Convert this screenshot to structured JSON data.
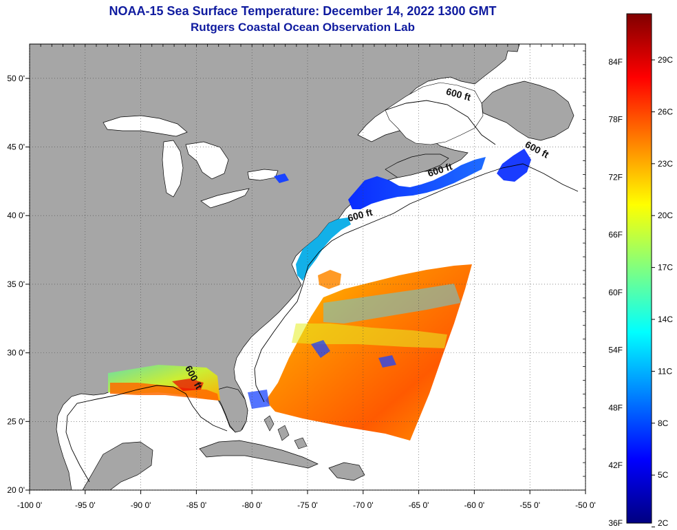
{
  "title": {
    "line1": "NOAA-15 Sea Surface Temperature:  December 14, 2022 1300 GMT",
    "line2": "Rutgers Coastal Ocean Observation Lab"
  },
  "map": {
    "lon_range": [
      -100,
      -50
    ],
    "lat_range": [
      20,
      52.5
    ],
    "lon_ticks": [
      {
        "value": -100,
        "label": "-100 0'"
      },
      {
        "value": -95,
        "label": "-95 0'"
      },
      {
        "value": -90,
        "label": "-90 0'"
      },
      {
        "value": -85,
        "label": "-85 0'"
      },
      {
        "value": -80,
        "label": "-80 0'"
      },
      {
        "value": -75,
        "label": "-75 0'"
      },
      {
        "value": -70,
        "label": "-70 0'"
      },
      {
        "value": -65,
        "label": "-65 0'"
      },
      {
        "value": -60,
        "label": "-60 0'"
      },
      {
        "value": -55,
        "label": "-55 0'"
      },
      {
        "value": -50,
        "label": "-50 0'"
      }
    ],
    "lat_ticks": [
      {
        "value": 20,
        "label": "20 0'"
      },
      {
        "value": 25,
        "label": "25 0'"
      },
      {
        "value": 30,
        "label": "30 0'"
      },
      {
        "value": 35,
        "label": "35 0'"
      },
      {
        "value": 40,
        "label": "40 0'"
      },
      {
        "value": 45,
        "label": "45 0'"
      },
      {
        "value": 50,
        "label": "50 0'"
      }
    ],
    "isobath_labels": [
      {
        "text": "600 ft",
        "lon": -61.5,
        "lat": 48.6,
        "angle": 15
      },
      {
        "text": "600 ft",
        "lon": -54.5,
        "lat": 44.6,
        "angle": 28
      },
      {
        "text": "600 ft",
        "lon": -63.0,
        "lat": 43.1,
        "angle": -18
      },
      {
        "text": "600 ft",
        "lon": -70.2,
        "lat": 39.8,
        "angle": -15
      },
      {
        "text": "600 ft",
        "lon": -85.5,
        "lat": 28.1,
        "angle": 62
      }
    ],
    "colors": {
      "land": "#a6a6a6",
      "ocean_no_data": "#ffffff",
      "grid": "#444444",
      "title": "#0f1b9f"
    }
  },
  "colorbar": {
    "fahrenheit_labels": [
      {
        "value": 36,
        "label": "36F"
      },
      {
        "value": 42,
        "label": "42F"
      },
      {
        "value": 48,
        "label": "48F"
      },
      {
        "value": 54,
        "label": "54F"
      },
      {
        "value": 60,
        "label": "60F"
      },
      {
        "value": 66,
        "label": "66F"
      },
      {
        "value": 72,
        "label": "72F"
      },
      {
        "value": 78,
        "label": "78F"
      },
      {
        "value": 84,
        "label": "84F"
      }
    ],
    "celsius_labels": [
      {
        "value": 2,
        "label": "2C"
      },
      {
        "value": 5,
        "label": "5C"
      },
      {
        "value": 8,
        "label": "8C"
      },
      {
        "value": 11,
        "label": "11C"
      },
      {
        "value": 14,
        "label": "14C"
      },
      {
        "value": 17,
        "label": "17C"
      },
      {
        "value": 20,
        "label": "20C"
      },
      {
        "value": 23,
        "label": "23C"
      },
      {
        "value": 26,
        "label": "26C"
      },
      {
        "value": 29,
        "label": "29C"
      }
    ],
    "range_f": [
      36,
      89
    ],
    "colormap": [
      "#000080",
      "#0000ff",
      "#0080ff",
      "#00ffff",
      "#80ff80",
      "#ffff00",
      "#ff8000",
      "#ff0000",
      "#800000"
    ]
  }
}
